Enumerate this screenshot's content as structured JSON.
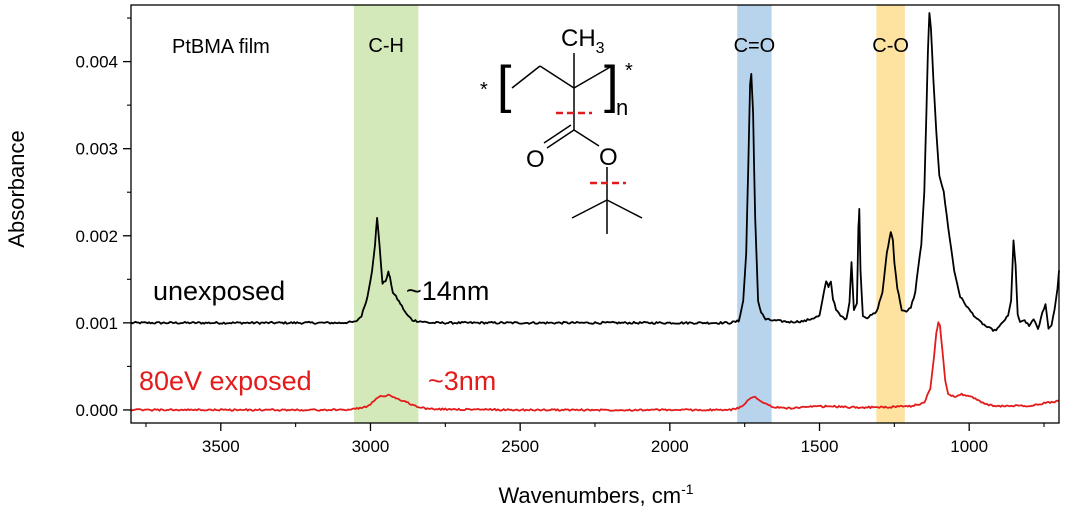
{
  "chart_data": {
    "type": "line",
    "title": "",
    "xlabel": "Wavenumbers, cm",
    "xlabel_superscript": "-1",
    "ylabel": "Absorbance",
    "xlim": [
      3800,
      700
    ],
    "ylim": [
      -0.00015,
      0.00465
    ],
    "x_reversed": true,
    "grid": false,
    "xticks": [
      {
        "value": 3500,
        "label": "3500"
      },
      {
        "value": 3000,
        "label": "3000"
      },
      {
        "value": 2500,
        "label": "2500"
      },
      {
        "value": 2000,
        "label": "2000"
      },
      {
        "value": 1500,
        "label": "1500"
      },
      {
        "value": 1000,
        "label": "1000"
      }
    ],
    "yticks": [
      {
        "value": 0.0,
        "label": "0.000"
      },
      {
        "value": 0.001,
        "label": "0.001"
      },
      {
        "value": 0.002,
        "label": "0.002"
      },
      {
        "value": 0.003,
        "label": "0.003"
      },
      {
        "value": 0.004,
        "label": "0.004"
      }
    ],
    "bands": [
      {
        "label": "C-H",
        "x_start": 3055,
        "x_end": 2840,
        "color": "#d4e9b9"
      },
      {
        "label": "C=O",
        "x_start": 1775,
        "x_end": 1660,
        "color": "#b8d4ec"
      },
      {
        "label": "C-O",
        "x_start": 1310,
        "x_end": 1215,
        "color": "#fde2a0"
      }
    ],
    "series": [
      {
        "name": "unexposed",
        "color": "#000000",
        "x": [
          3800,
          3500,
          3100,
          3050,
          3030,
          3010,
          2995,
          2985,
          2978,
          2970,
          2960,
          2950,
          2940,
          2935,
          2925,
          2915,
          2900,
          2880,
          2860,
          2840,
          2800,
          2500,
          2000,
          1800,
          1770,
          1755,
          1745,
          1738,
          1732,
          1728,
          1722,
          1715,
          1705,
          1695,
          1680,
          1660,
          1600,
          1550,
          1500,
          1485,
          1478,
          1470,
          1462,
          1455,
          1445,
          1430,
          1410,
          1400,
          1393,
          1385,
          1375,
          1370,
          1367,
          1363,
          1355,
          1340,
          1310,
          1290,
          1275,
          1262,
          1255,
          1250,
          1240,
          1225,
          1210,
          1195,
          1180,
          1170,
          1160,
          1150,
          1143,
          1138,
          1133,
          1128,
          1120,
          1110,
          1100,
          1085,
          1070,
          1050,
          1030,
          1000,
          970,
          940,
          915,
          900,
          885,
          870,
          860,
          852,
          845,
          838,
          830,
          815,
          800,
          785,
          770,
          755,
          745,
          735,
          725,
          715,
          705,
          700
        ],
        "values": [
          0.001,
          0.001,
          0.001,
          0.00101,
          0.00108,
          0.0013,
          0.0016,
          0.0019,
          0.0022,
          0.0019,
          0.00145,
          0.00148,
          0.00158,
          0.00152,
          0.00135,
          0.0013,
          0.00122,
          0.0011,
          0.00103,
          0.00102,
          0.001,
          0.001,
          0.001,
          0.001,
          0.00102,
          0.00125,
          0.0018,
          0.0028,
          0.00375,
          0.00385,
          0.0034,
          0.0022,
          0.00125,
          0.00112,
          0.00104,
          0.00103,
          0.00101,
          0.00102,
          0.00108,
          0.00135,
          0.00148,
          0.00142,
          0.00148,
          0.00128,
          0.00115,
          0.00108,
          0.00104,
          0.00125,
          0.0017,
          0.00115,
          0.00122,
          0.0021,
          0.0023,
          0.0016,
          0.00108,
          0.00106,
          0.00112,
          0.00135,
          0.0018,
          0.00205,
          0.00195,
          0.0017,
          0.0014,
          0.00115,
          0.00112,
          0.00118,
          0.00135,
          0.00165,
          0.0019,
          0.0025,
          0.0034,
          0.0041,
          0.00455,
          0.0044,
          0.0038,
          0.0032,
          0.0027,
          0.0025,
          0.0021,
          0.0016,
          0.0013,
          0.00115,
          0.00103,
          0.00095,
          0.00091,
          0.00095,
          0.00102,
          0.00108,
          0.00125,
          0.00195,
          0.00165,
          0.0011,
          0.001,
          0.00103,
          0.00096,
          0.00105,
          0.00092,
          0.00112,
          0.00122,
          0.00093,
          0.00098,
          0.00115,
          0.0014,
          0.0016
        ]
      },
      {
        "name": "80eV exposed",
        "color": "#e31b1b",
        "x": [
          3800,
          3500,
          3100,
          3060,
          3020,
          3000,
          2985,
          2970,
          2955,
          2940,
          2920,
          2900,
          2880,
          2860,
          2840,
          2800,
          2500,
          2000,
          1800,
          1770,
          1755,
          1740,
          1725,
          1715,
          1705,
          1690,
          1670,
          1650,
          1600,
          1550,
          1500,
          1450,
          1400,
          1300,
          1200,
          1150,
          1130,
          1118,
          1110,
          1103,
          1098,
          1090,
          1080,
          1070,
          1050,
          1030,
          1000,
          970,
          940,
          900,
          850,
          800,
          760,
          730,
          700
        ],
        "values": [
          0.0,
          0.0,
          0.0,
          1e-05,
          3e-05,
          7e-05,
          0.00012,
          0.00015,
          0.00016,
          0.00017,
          0.00015,
          0.00011,
          9e-05,
          6e-05,
          3e-05,
          1e-05,
          0.0,
          0.0,
          0.0,
          2e-05,
          6e-05,
          0.00011,
          0.00014,
          0.00015,
          0.00013,
          9e-05,
          5e-05,
          3e-05,
          2e-05,
          3e-05,
          4e-05,
          4e-05,
          3e-05,
          3e-05,
          4e-05,
          8e-05,
          0.00025,
          0.0006,
          0.00088,
          0.001,
          0.00098,
          0.0007,
          0.00035,
          0.00018,
          0.00015,
          0.00018,
          0.00016,
          0.00011,
          6e-05,
          4e-05,
          5e-05,
          4e-05,
          7e-05,
          9e-05,
          0.0001
        ]
      }
    ],
    "annotations": [
      {
        "id": "film",
        "text": "PtBMA film"
      },
      {
        "id": "unexposed-label",
        "text": "unexposed"
      },
      {
        "id": "unexposed-thickness",
        "text": "~14nm"
      },
      {
        "id": "exposed-label",
        "text": "80eV exposed"
      },
      {
        "id": "exposed-thickness",
        "text": "~3nm"
      }
    ],
    "structure": {
      "ch3": "CH",
      "ch3_sub": "3",
      "n": "n",
      "star_left": "*",
      "star_right": "*",
      "carbonyl_o": "O",
      "ester_o": "O"
    }
  }
}
